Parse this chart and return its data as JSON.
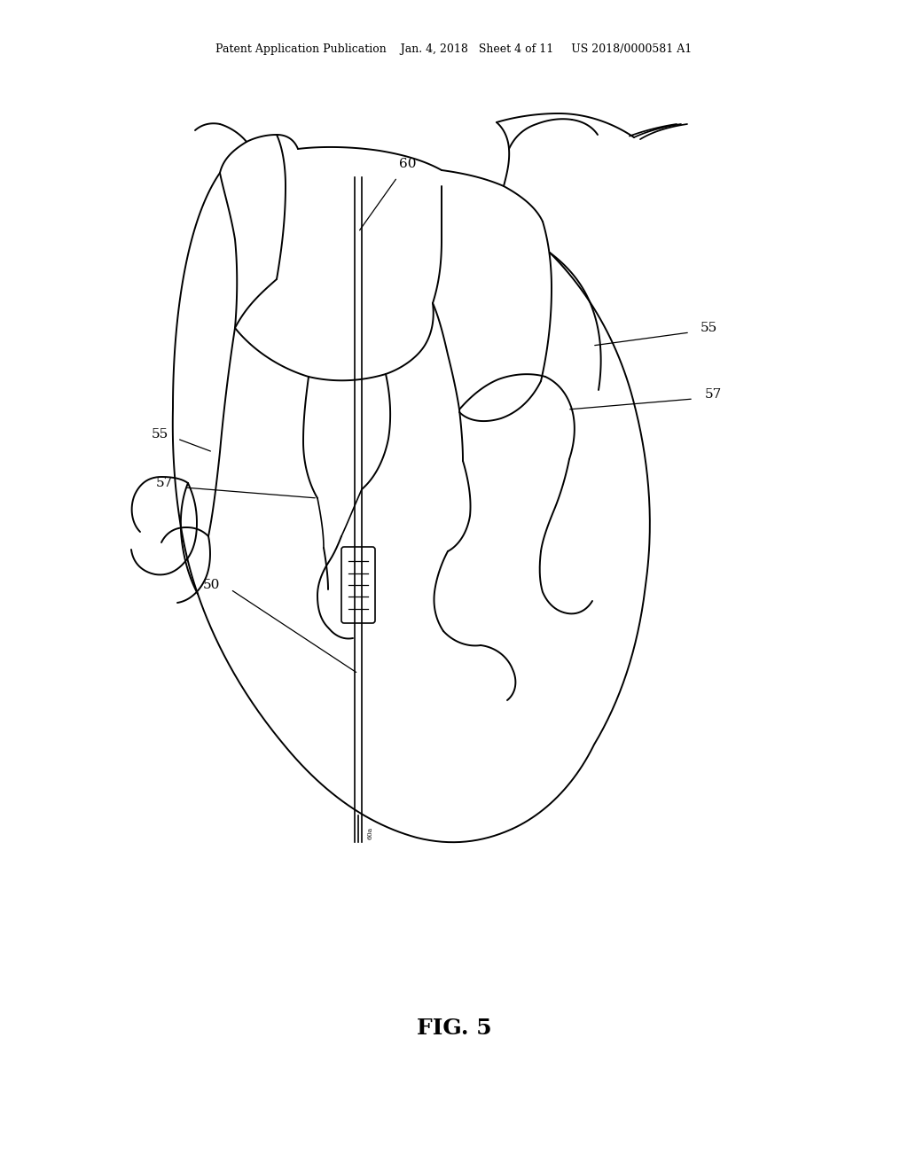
{
  "bg_color": "#ffffff",
  "line_color": "#000000",
  "lw": 1.4,
  "lw_thin": 1.0,
  "fig_width": 10.24,
  "fig_height": 13.2,
  "header_text": "Patent Application Publication    Jan. 4, 2018   Sheet 4 of 11     US 2018/0000581 A1",
  "figure_label": "FIG. 5"
}
